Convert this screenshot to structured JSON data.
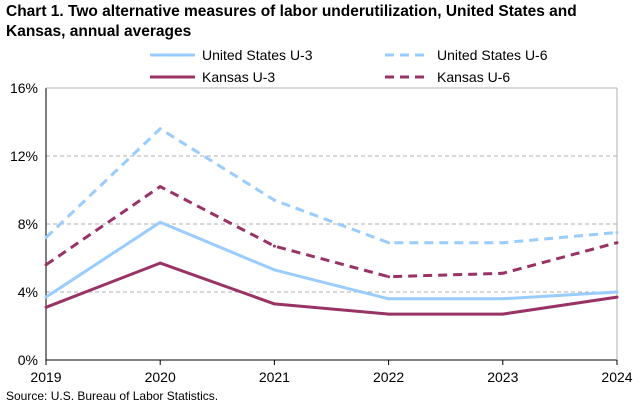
{
  "chart_data": {
    "type": "line",
    "title": "Chart 1. Two alternative measures of labor underutilization, United States and Kansas, annual averages",
    "source": "Source: U.S. Bureau of Labor Statistics.",
    "x": [
      "2019",
      "2020",
      "2021",
      "2022",
      "2023",
      "2024"
    ],
    "ylim": [
      0,
      16
    ],
    "yticks": [
      0,
      4,
      8,
      12,
      16
    ],
    "ytick_labels": [
      "0%",
      "4%",
      "8%",
      "12%",
      "16%"
    ],
    "grid": true,
    "legend_placement": "top",
    "series": [
      {
        "name": "United States U-3",
        "color": "#99CCFF",
        "dashed": false,
        "values": [
          3.7,
          8.1,
          5.3,
          3.6,
          3.6,
          4.0
        ]
      },
      {
        "name": "United States U-6",
        "color": "#99CCFF",
        "dashed": true,
        "values": [
          7.2,
          13.6,
          9.4,
          6.9,
          6.9,
          7.5
        ]
      },
      {
        "name": "Kansas U-3",
        "color": "#993366",
        "dashed": false,
        "values": [
          3.1,
          5.7,
          3.3,
          2.7,
          2.7,
          3.7
        ]
      },
      {
        "name": "Kansas U-6",
        "color": "#993366",
        "dashed": true,
        "values": [
          5.6,
          10.2,
          6.7,
          4.9,
          5.1,
          6.9
        ]
      }
    ]
  }
}
